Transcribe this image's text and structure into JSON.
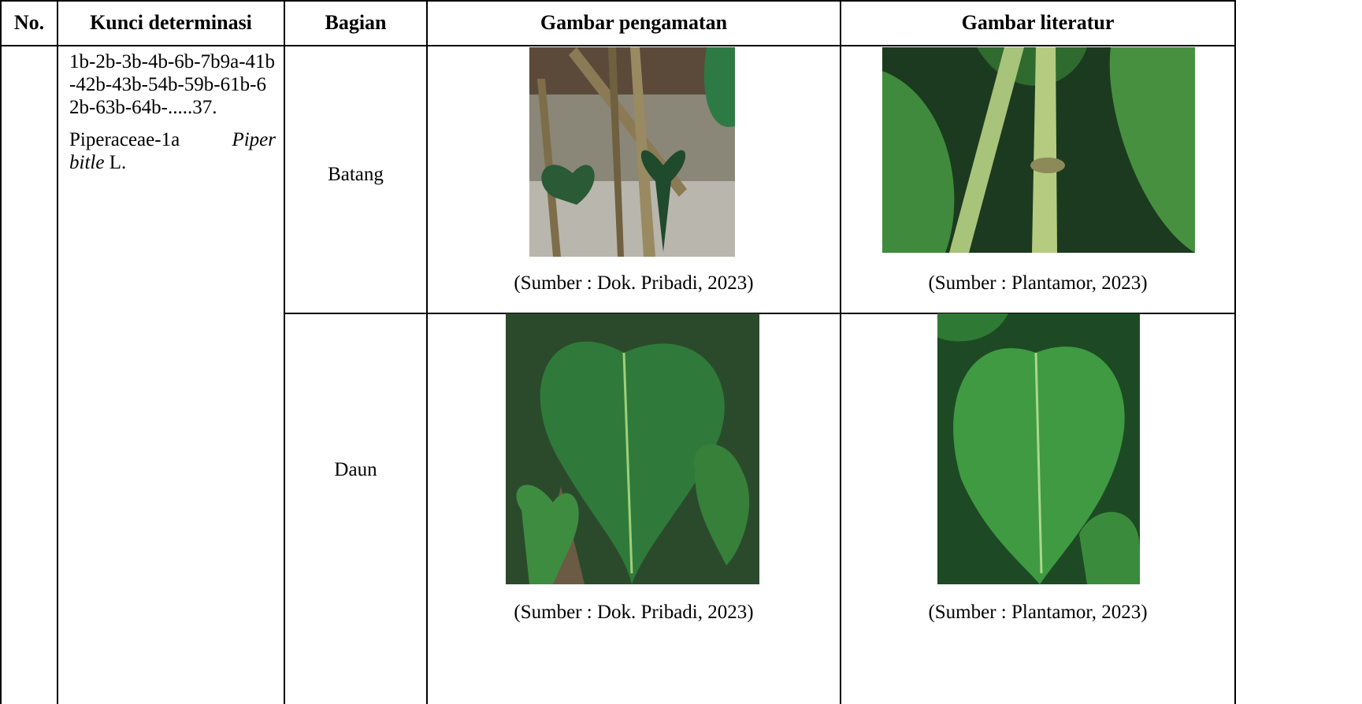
{
  "table": {
    "headers": [
      "No.",
      "Kunci determinasi",
      "Bagian",
      "Gambar pengamatan",
      "Gambar literatur"
    ],
    "key": {
      "code": "1b-2b-3b-4b-6b-7b9a-41b-42b-43b-54b-59b-61b-62b-63b-64b-.....37.",
      "family": "Piperaceae-1a",
      "species": "Piper bitle",
      "author": "L."
    },
    "rows": [
      {
        "part": "Batang",
        "observation_caption": "(Sumber : Dok. Pribadi, 2023)",
        "literature_caption": "(Sumber : Plantamor, 2023)"
      },
      {
        "part": "Daun",
        "observation_caption": "(Sumber : Dok. Pribadi, 2023)",
        "literature_caption": "(Sumber : Plantamor, 2023)"
      }
    ]
  }
}
